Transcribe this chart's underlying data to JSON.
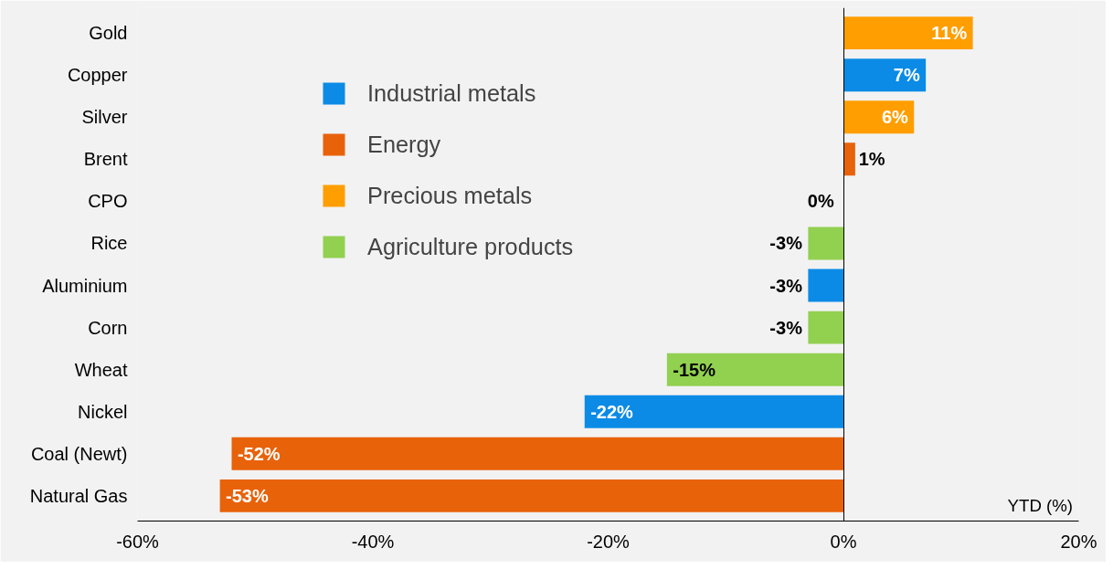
{
  "chart_data": {
    "type": "bar",
    "orientation": "horizontal",
    "categories": [
      "Gold",
      "Copper",
      "Silver",
      "Brent",
      "CPO",
      "Rice",
      "Aluminium",
      "Corn",
      "Wheat",
      "Nickel",
      "Coal (Newt)",
      "Natural Gas"
    ],
    "series": [
      {
        "name": "Industrial metals",
        "color": "#0b8be6",
        "values": [
          null,
          7,
          null,
          null,
          null,
          null,
          -3,
          null,
          null,
          -22,
          null,
          null
        ],
        "value_labels": [
          null,
          "7%",
          null,
          null,
          null,
          null,
          "-3%",
          null,
          null,
          "-22%",
          null,
          null
        ]
      },
      {
        "name": "Energy",
        "color": "#e8620a",
        "values": [
          null,
          null,
          null,
          1,
          null,
          null,
          null,
          null,
          null,
          null,
          -52,
          -53
        ],
        "value_labels": [
          null,
          null,
          null,
          "1%",
          null,
          null,
          null,
          null,
          null,
          null,
          "-52%",
          "-53%"
        ]
      },
      {
        "name": "Precious metals",
        "color": "#ff9e00",
        "values": [
          11,
          null,
          6,
          null,
          null,
          null,
          null,
          null,
          null,
          null,
          null,
          null
        ],
        "value_labels": [
          "11%",
          null,
          "6%",
          null,
          null,
          null,
          null,
          null,
          null,
          null,
          null,
          null
        ]
      },
      {
        "name": "Agriculture products",
        "color": "#92d050",
        "values": [
          null,
          null,
          null,
          null,
          0,
          -3,
          null,
          -3,
          -15,
          null,
          null,
          null
        ],
        "value_labels": [
          null,
          null,
          null,
          null,
          "0%",
          "-3%",
          null,
          "-3%",
          "-15%",
          null,
          null,
          null
        ]
      }
    ],
    "xlim": [
      -60,
      20
    ],
    "xticks": [
      {
        "value": -60,
        "label": "-60%"
      },
      {
        "value": -40,
        "label": "-40%"
      },
      {
        "value": -20,
        "label": "-20%"
      },
      {
        "value": 0,
        "label": "0%"
      },
      {
        "value": 20,
        "label": "20%"
      }
    ],
    "xlabel": "YTD (%)",
    "legend": "top left"
  }
}
